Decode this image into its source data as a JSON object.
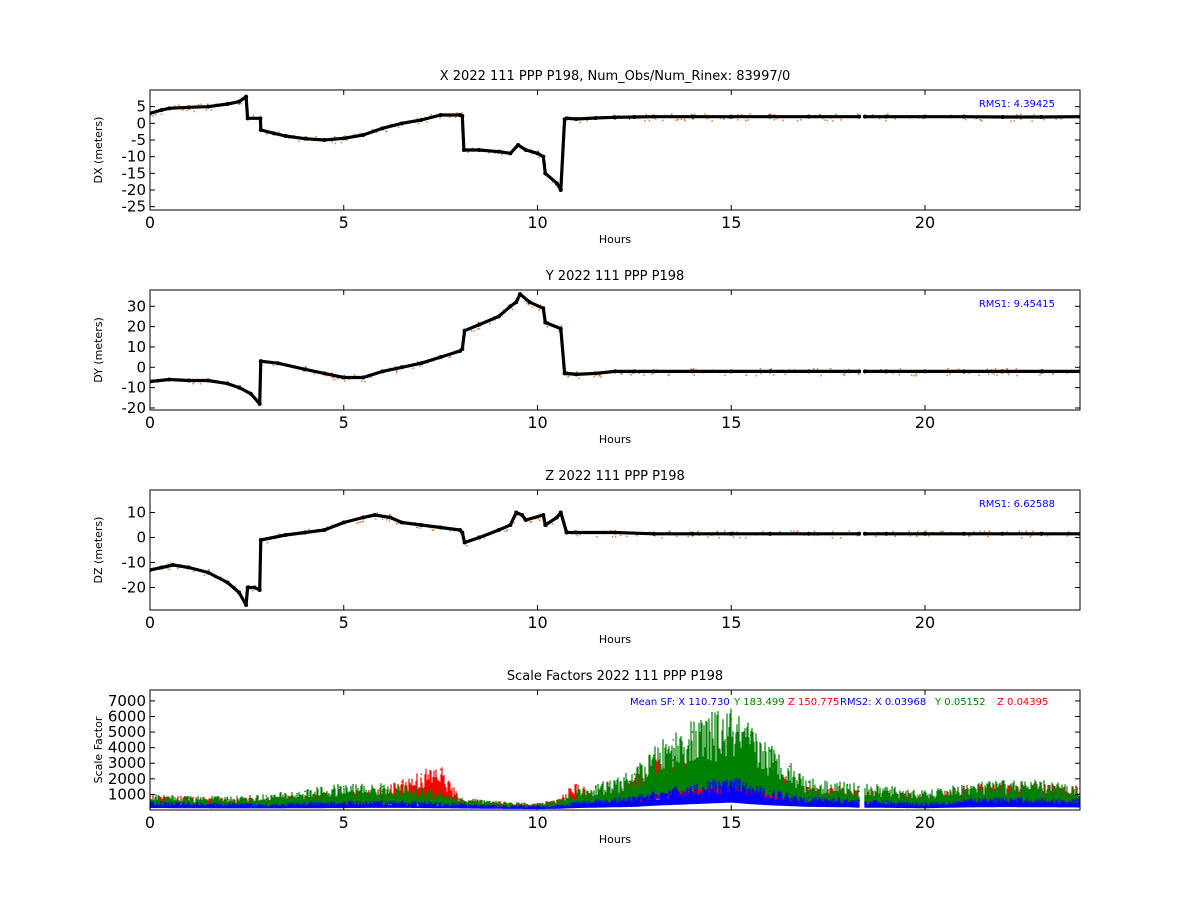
{
  "chart_data": [
    {
      "type": "scatter",
      "title": "X 2022 111 PPP  P198, Num_Obs/Num_Rinex: 83997/0",
      "xlabel": "Hours",
      "ylabel": "DX (meters)",
      "xlim": [
        0,
        24
      ],
      "ylim": [
        -26,
        10
      ],
      "xticks": [
        0,
        5,
        10,
        15,
        20
      ],
      "yticks": [
        5,
        0,
        -5,
        -10,
        -15,
        -20,
        -25
      ],
      "annotation": "RMS1:  4.39425",
      "series": [
        {
          "color": "#000000",
          "x": [
            0,
            0.3,
            0.5,
            1.0,
            1.5,
            2.0,
            2.3,
            2.48,
            2.52,
            2.85,
            2.86,
            3.2,
            3.5,
            4.0,
            4.5,
            5.0,
            5.5,
            6.0,
            6.5,
            7.0,
            7.5,
            8.0,
            8.06,
            8.1,
            8.5,
            9.0,
            9.3,
            9.5,
            9.7,
            10.0,
            10.15,
            10.2,
            10.5,
            10.6,
            10.7,
            10.75,
            11.0,
            11.5,
            12.0,
            12.5,
            13.0,
            14.0,
            15.0,
            16.0,
            17.0,
            18.3,
            18.45,
            19.0,
            20.0,
            21.0,
            22.0,
            23.0,
            24.0
          ],
          "y": [
            3,
            4,
            4.5,
            4.8,
            5,
            5.8,
            6.5,
            8,
            1.5,
            1.5,
            -2,
            -3,
            -3.8,
            -4.6,
            -5,
            -4.5,
            -3.5,
            -1.5,
            0,
            1,
            2.5,
            2.5,
            2.2,
            -8,
            -8,
            -8.5,
            -9,
            -6.5,
            -8,
            -9,
            -10,
            -15,
            -18,
            -20,
            1.2,
            1.5,
            1.3,
            1.6,
            1.8,
            1.9,
            2,
            2,
            2,
            2,
            2,
            2,
            2,
            2,
            2,
            2,
            1.9,
            1.9,
            2
          ]
        }
      ]
    },
    {
      "type": "scatter",
      "title": "Y 2022 111 PPP  P198",
      "xlabel": "Hours",
      "ylabel": "DY (meters)",
      "xlim": [
        0,
        24
      ],
      "ylim": [
        -21,
        38
      ],
      "xticks": [
        0,
        5,
        10,
        15,
        20
      ],
      "yticks": [
        30,
        20,
        10,
        0,
        -10,
        -20
      ],
      "annotation": "RMS1:  9.45415",
      "series": [
        {
          "color": "#000000",
          "x": [
            0,
            0.5,
            1.0,
            1.5,
            2.0,
            2.3,
            2.6,
            2.83,
            2.86,
            3.3,
            4.0,
            4.5,
            5.0,
            5.5,
            6.0,
            6.5,
            7.0,
            7.5,
            8.0,
            8.06,
            8.12,
            8.5,
            9.0,
            9.3,
            9.45,
            9.55,
            9.8,
            10.15,
            10.2,
            10.6,
            10.7,
            10.75,
            11.0,
            11.5,
            12.0,
            12.5,
            13.0,
            14.0,
            15.0,
            16.0,
            17.0,
            18.3,
            18.45,
            19.0,
            20.0,
            21.0,
            22.0,
            23.0,
            24.0
          ],
          "y": [
            -7,
            -6,
            -6.5,
            -6.5,
            -8,
            -10,
            -13,
            -18,
            3,
            2,
            -1,
            -3,
            -5,
            -5,
            -2,
            0,
            2,
            5,
            8,
            9,
            18,
            21,
            25,
            30,
            32,
            36,
            32,
            29,
            22,
            19,
            -3,
            -3,
            -3.5,
            -3,
            -2,
            -2,
            -2,
            -2,
            -2,
            -2,
            -2,
            -2,
            -2,
            -2,
            -2,
            -2,
            -2,
            -2,
            -2
          ]
        }
      ]
    },
    {
      "type": "scatter",
      "title": "Z 2022 111 PPP  P198",
      "xlabel": "Hours",
      "ylabel": "DZ (meters)",
      "xlim": [
        0,
        24
      ],
      "ylim": [
        -29,
        19
      ],
      "xticks": [
        0,
        5,
        10,
        15,
        20
      ],
      "yticks": [
        10,
        0,
        -10,
        -20
      ],
      "annotation": "RMS1:  6.62588",
      "series": [
        {
          "color": "#000000",
          "x": [
            0,
            0.3,
            0.6,
            1.0,
            1.5,
            2.0,
            2.3,
            2.48,
            2.52,
            2.7,
            2.83,
            2.86,
            3.5,
            4.0,
            4.5,
            5.0,
            5.5,
            5.8,
            6.2,
            6.5,
            7.0,
            7.5,
            8.0,
            8.06,
            8.12,
            8.5,
            9.0,
            9.3,
            9.45,
            9.6,
            9.7,
            10.15,
            10.2,
            10.5,
            10.6,
            10.75,
            11.0,
            12.0,
            13.0,
            14.0,
            15.0,
            16.0,
            17.0,
            18.3,
            18.45,
            19.0,
            20.0,
            21.0,
            22.0,
            23.0,
            24.0
          ],
          "y": [
            -13,
            -12,
            -11,
            -12,
            -14,
            -18,
            -22,
            -27,
            -20,
            -20,
            -21,
            -1,
            1,
            2,
            3,
            6,
            8,
            9,
            8,
            6,
            5,
            4,
            3,
            2,
            -2,
            0,
            3,
            5,
            10,
            9,
            7,
            9,
            5,
            8,
            10,
            2,
            2,
            2,
            1.5,
            1.5,
            1.5,
            1.5,
            1.5,
            1.5,
            1.5,
            1.5,
            1.5,
            1.5,
            1.5,
            1.5,
            1.5
          ]
        }
      ]
    },
    {
      "type": "area",
      "title": "Scale Factors 2022 111 PPP  P198",
      "xlabel": "Hours",
      "ylabel": "Scale Factor",
      "xlim": [
        0,
        24
      ],
      "ylim": [
        0,
        7700
      ],
      "xticks": [
        0,
        5,
        10,
        15,
        20
      ],
      "yticks": [
        7000,
        6000,
        5000,
        4000,
        3000,
        2000,
        1000
      ],
      "annotations": [
        {
          "text": "Mean SF: X 110.730",
          "color": "#0000ff"
        },
        {
          "text": "Y 183.499",
          "color": "#008000"
        },
        {
          "text": "Z 150.775",
          "color": "#ff0000"
        },
        {
          "text": "RMS2: X  0.03968",
          "color": "#0000ff"
        },
        {
          "text": "Y  0.05152",
          "color": "#008000"
        },
        {
          "text": "Z  0.04395",
          "color": "#ff0000"
        }
      ],
      "x": [
        0,
        1,
        2,
        3,
        4,
        5,
        6,
        6.5,
        7,
        7.5,
        8,
        9,
        10,
        10.5,
        11,
        11.5,
        12,
        12.5,
        13,
        13.5,
        14,
        14.5,
        15,
        15.5,
        16,
        16.5,
        17,
        18,
        18.3,
        19,
        20,
        21,
        22,
        23,
        24
      ],
      "series": [
        {
          "color": "#ff0000",
          "values": [
            900,
            800,
            700,
            700,
            900,
            1000,
            1200,
            1800,
            2300,
            2600,
            700,
            500,
            400,
            600,
            1600,
            900,
            1200,
            1800,
            2800,
            3200,
            2500,
            2600,
            2800,
            2400,
            2000,
            1800,
            1400,
            1300,
            1200,
            1100,
            900,
            1400,
            1600,
            1500,
            1400
          ]
        },
        {
          "color": "#008000",
          "values": [
            900,
            800,
            800,
            900,
            1200,
            1500,
            1500,
            1400,
            1300,
            1200,
            700,
            500,
            400,
            600,
            1200,
            1500,
            1800,
            2300,
            3500,
            4500,
            5000,
            5500,
            5800,
            4800,
            3800,
            2800,
            1800,
            1600,
            1500,
            1400,
            1100,
            1500,
            1700,
            1700,
            1400
          ]
        },
        {
          "color": "#0000ff",
          "values": [
            500,
            450,
            400,
            400,
            450,
            500,
            550,
            550,
            500,
            450,
            400,
            300,
            250,
            300,
            500,
            600,
            700,
            800,
            1100,
            1300,
            1500,
            1700,
            1900,
            1500,
            1200,
            1000,
            800,
            700,
            600,
            550,
            450,
            650,
            750,
            700,
            650
          ]
        }
      ]
    }
  ]
}
